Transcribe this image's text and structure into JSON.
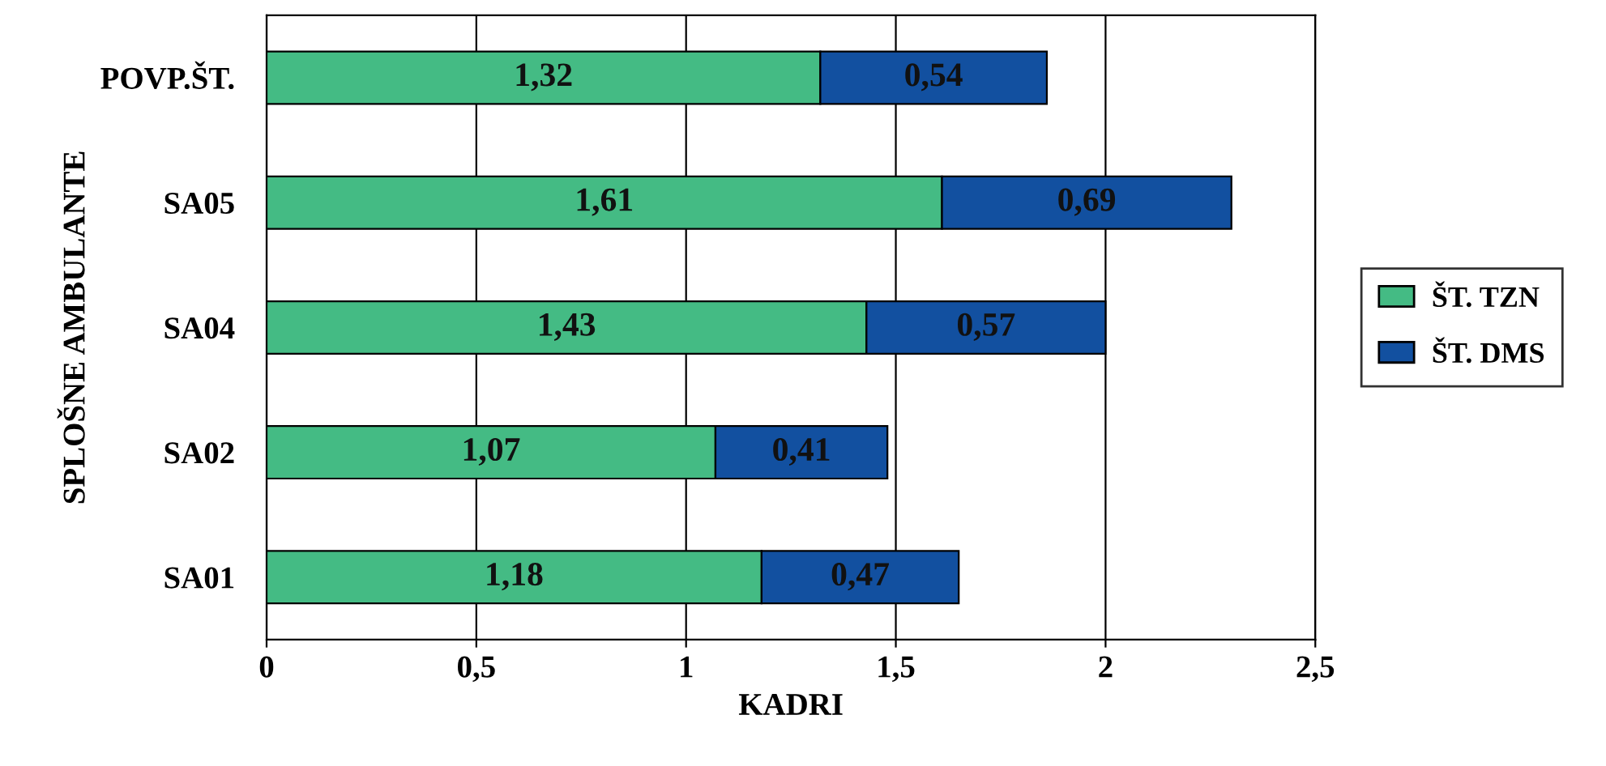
{
  "chart_data": {
    "type": "bar",
    "orientation": "horizontal",
    "stacked": true,
    "xlabel": "KADRI",
    "ylabel": "SPLOŠNE AMBULANTE",
    "categories": [
      "POVP.ŠT.",
      "SA05",
      "SA04",
      "SA02",
      "SA01"
    ],
    "series": [
      {
        "name": "ŠT. TZN",
        "color": "#44bb84",
        "values": [
          1.32,
          1.61,
          1.43,
          1.07,
          1.18
        ],
        "value_labels": [
          "1,32",
          "1,61",
          "1,43",
          "1,07",
          "1,18"
        ]
      },
      {
        "name": "ŠT. DMS",
        "color": "#1250a0",
        "values": [
          0.54,
          0.69,
          0.57,
          0.41,
          0.47
        ],
        "value_labels": [
          "0,54",
          "0,69",
          "0,57",
          "0,41",
          "0,47"
        ]
      }
    ],
    "xlim": [
      0,
      2.5
    ],
    "xticks": [
      0,
      {
        "value": 0.5,
        "label": "0,5"
      },
      1,
      {
        "value": 1.5,
        "label": "1,5"
      },
      2,
      {
        "value": 2.5,
        "label": "2,5"
      }
    ],
    "grid": "x",
    "legend": "right"
  }
}
